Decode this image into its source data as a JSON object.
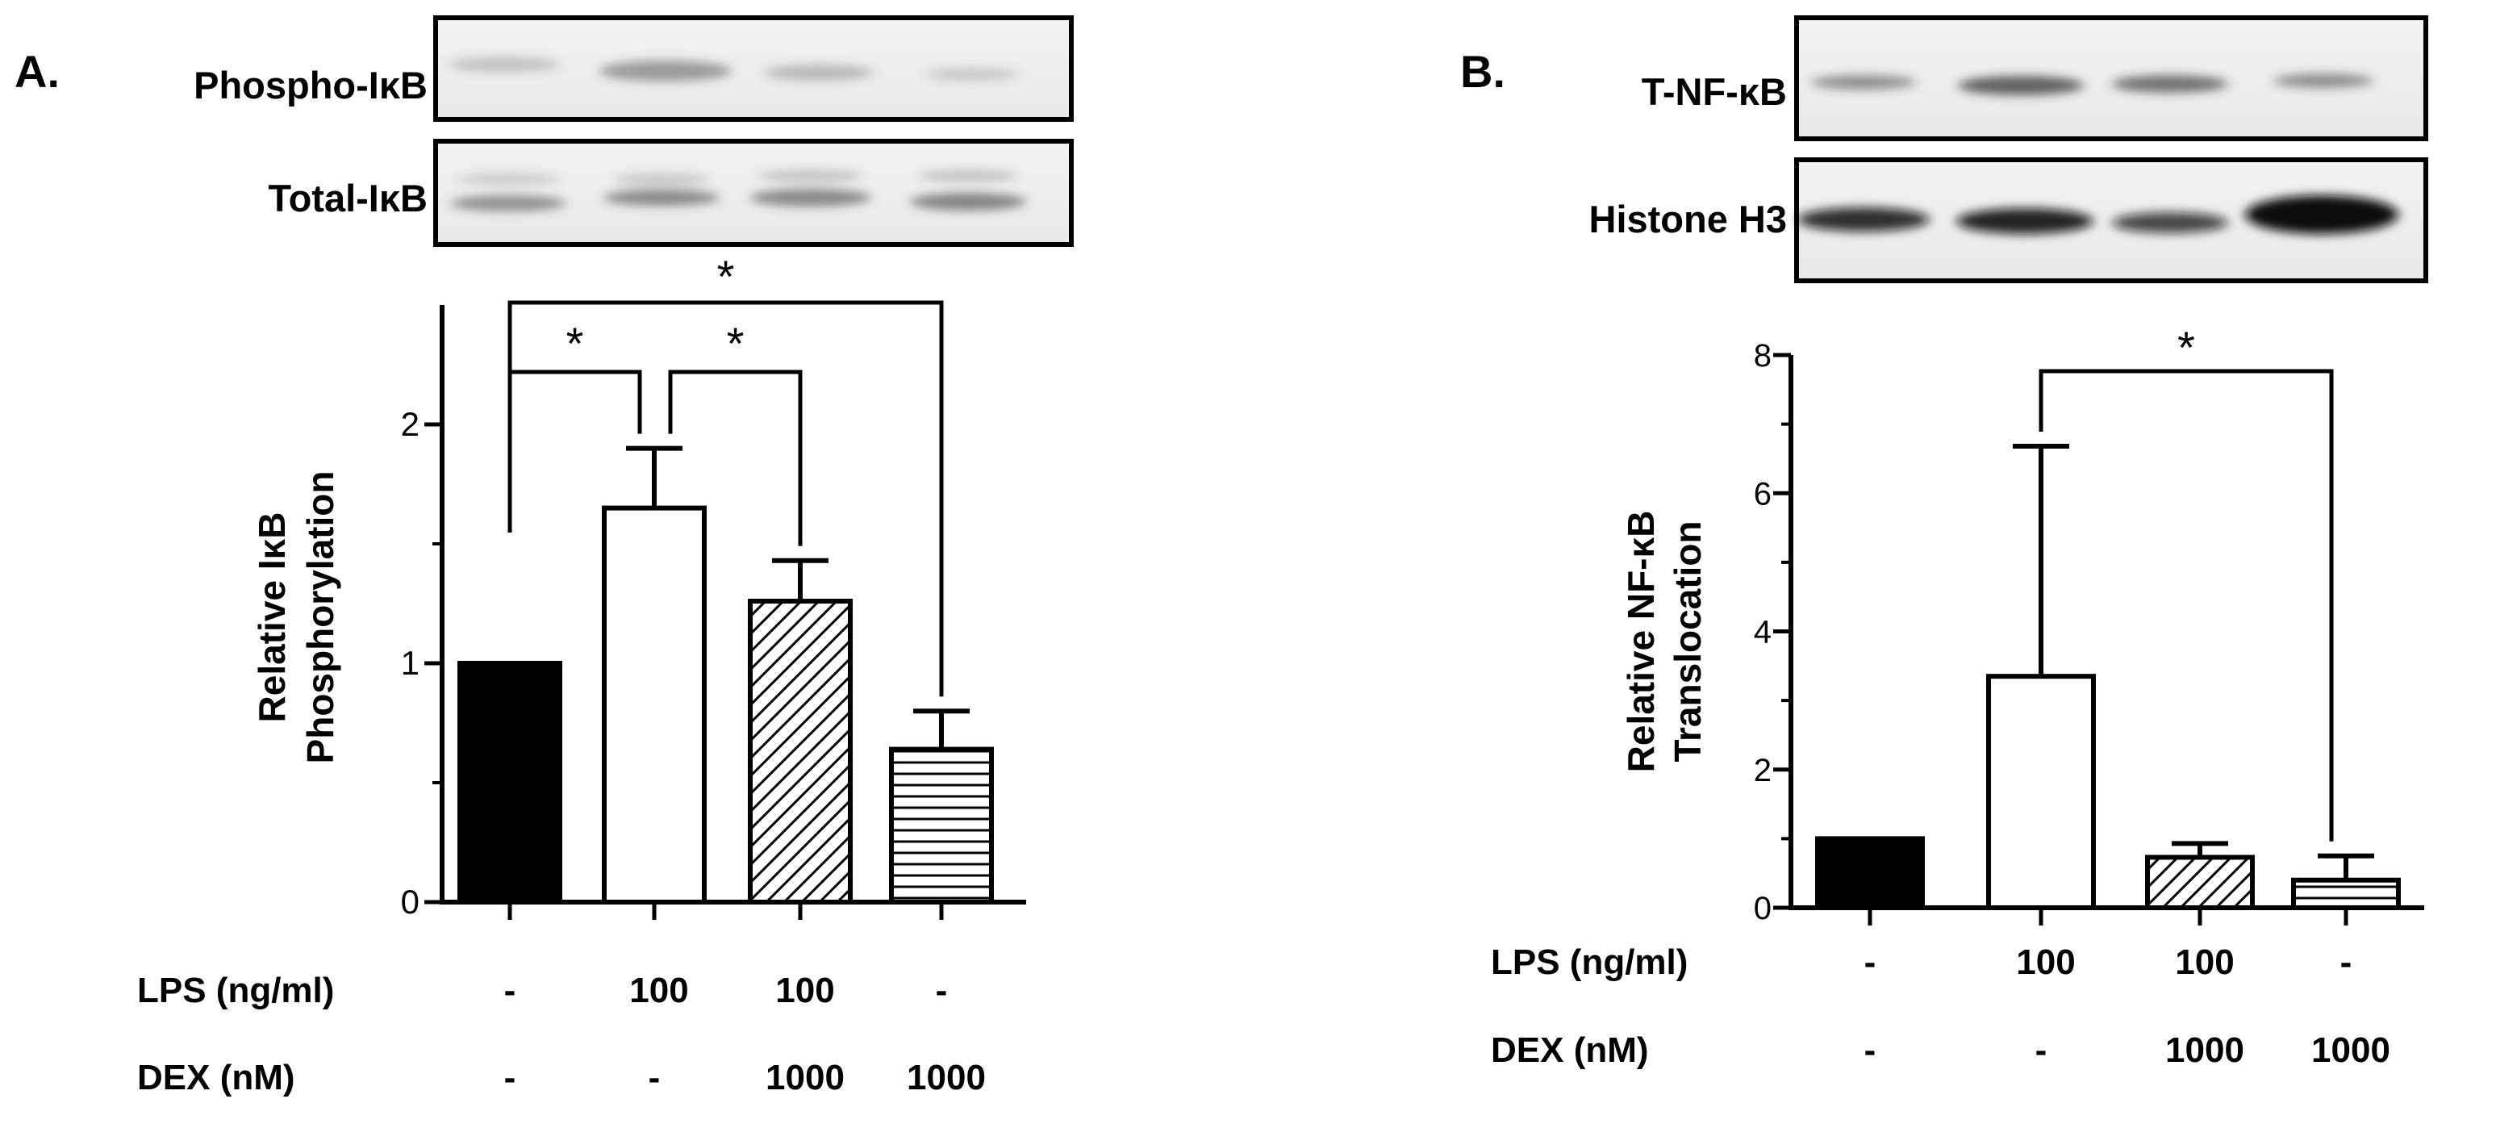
{
  "chart_data": [
    {
      "panel_label": "A.",
      "type": "bar",
      "blot_labels": [
        "Phospho-IκB",
        "Total-IκB"
      ],
      "ylabel_lines": [
        "Relative IκB",
        "Phosphorylation"
      ],
      "ylim": [
        0,
        2.5
      ],
      "yticks": [
        0,
        1,
        2
      ],
      "grid": false,
      "series": [
        {
          "values": [
            1.0,
            1.65,
            1.26,
            0.64
          ],
          "errors": [
            0,
            0.25,
            0.17,
            0.16
          ]
        }
      ],
      "bar_patterns": [
        "solid-black",
        "open",
        "diagonal-hatch",
        "horizontal-lines"
      ],
      "conditions": [
        {
          "label": "LPS (ng/ml)",
          "values": [
            "-",
            "100",
            "100",
            "-"
          ]
        },
        {
          "label": "DEX (nM)",
          "values": [
            "-",
            "-",
            "1000",
            "1000"
          ]
        }
      ],
      "significance": [
        {
          "from": 0,
          "to": 1,
          "label": "*"
        },
        {
          "from": 1,
          "to": 2,
          "label": "*"
        },
        {
          "from": 0,
          "to": 3,
          "label": "*"
        }
      ]
    },
    {
      "panel_label": "B.",
      "type": "bar",
      "blot_labels": [
        "T-NF-κB",
        "Histone H3"
      ],
      "ylabel_lines": [
        "Relative NF-κB",
        "Translocation"
      ],
      "ylim": [
        0,
        8
      ],
      "yticks": [
        0,
        2,
        4,
        6,
        8
      ],
      "grid": false,
      "series": [
        {
          "values": [
            1.0,
            3.35,
            0.73,
            0.4
          ],
          "errors": [
            0,
            3.33,
            0.2,
            0.35
          ]
        }
      ],
      "bar_patterns": [
        "solid-black",
        "open",
        "diagonal-hatch",
        "horizontal-lines"
      ],
      "conditions": [
        {
          "label": "LPS (ng/ml)",
          "values": [
            "-",
            "100",
            "100",
            "-"
          ]
        },
        {
          "label": "DEX (nM)",
          "values": [
            "-",
            "-",
            "1000",
            "1000"
          ]
        }
      ],
      "significance": [
        {
          "from": 1,
          "to": 3,
          "label": "*"
        }
      ]
    }
  ]
}
